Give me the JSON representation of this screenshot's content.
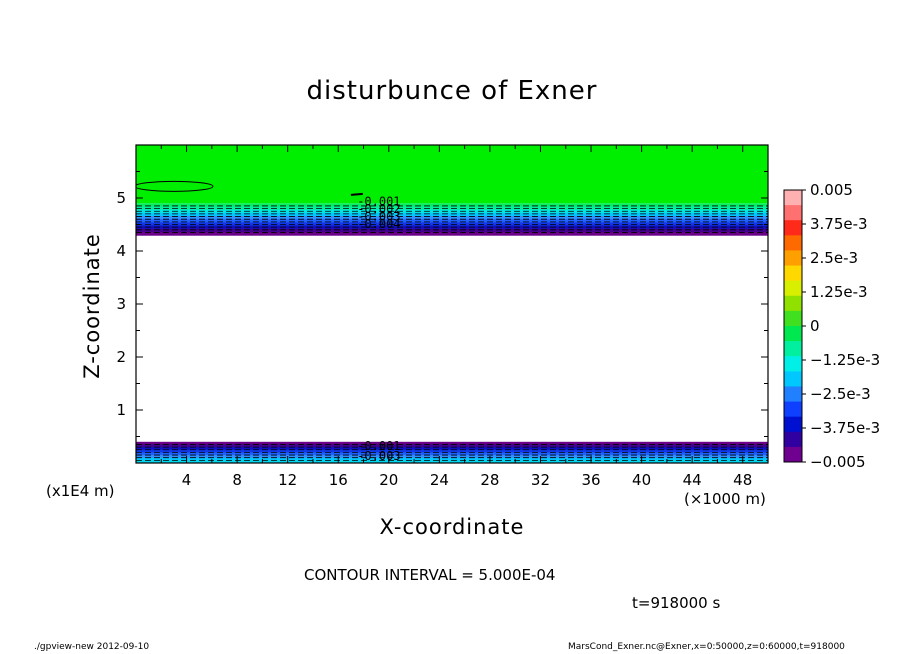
{
  "chart_data": {
    "type": "contour",
    "title": "disturbunce of Exner",
    "xlabel": "X-coordinate",
    "ylabel": "Z-coordinate",
    "x_unit": "(×1000 m)",
    "y_unit": "(x1E4 m)",
    "xlim": [
      0,
      50
    ],
    "ylim": [
      0,
      6
    ],
    "x_ticks": [
      "4",
      "8",
      "12",
      "16",
      "20",
      "24",
      "28",
      "32",
      "36",
      "40",
      "44",
      "48"
    ],
    "y_ticks": [
      "1",
      "2",
      "3",
      "4",
      "5"
    ],
    "contour_interval": "CONTOUR INTERVAL = 5.000E-04",
    "time": "t=918000 s",
    "colorbar": {
      "labels": [
        "0.005",
        "3.75e-3",
        "2.5e-3",
        "1.25e-3",
        "0",
        "−1.25e-3",
        "−2.5e-3",
        "−3.75e-3",
        "−0.005"
      ],
      "colors": [
        "#ffb0b0",
        "#ff7070",
        "#ff2a1a",
        "#ff6a00",
        "#ffa000",
        "#ffd800",
        "#d8f000",
        "#90e000",
        "#40e020",
        "#00e850",
        "#00f0a0",
        "#00f0e8",
        "#00c8ff",
        "#2080ff",
        "#1040ff",
        "#0010d0",
        "#3000a0",
        "#700090"
      ]
    },
    "upper_band": {
      "z_min": 4.3,
      "z_max": 4.9
    },
    "lower_band": {
      "z_min": 0,
      "z_max": 0.4
    },
    "contour_labels_upper": [
      "-0.001",
      "-0.002",
      "-0.003",
      "-0.004"
    ],
    "contour_labels_lower": [
      "-0.001",
      "-0.003"
    ]
  },
  "footer": {
    "left": "./gpview-new  2012-09-10",
    "right": "MarsCond_Exner.nc@Exner,x=0:50000,z=0:60000,t=918000"
  }
}
